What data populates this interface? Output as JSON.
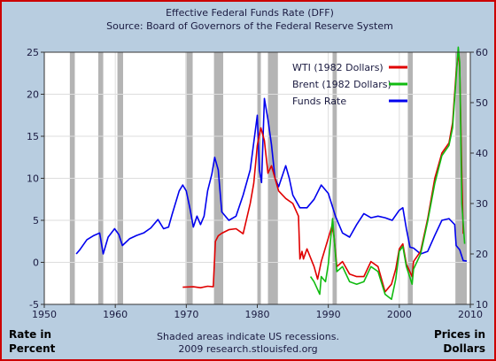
{
  "chart_data": {
    "type": "line",
    "title": "Effective Federal Funds Rate (DFF)",
    "subtitle": "Source: Board of Governors of the Federal Reserve System",
    "left_axis_label": [
      "Rate in",
      "Percent"
    ],
    "right_axis_label": [
      "Prices in",
      "Dollars"
    ],
    "note": "Shaded areas indicate US recessions.",
    "source_line": "2009 research.stlouisfed.org",
    "xlim": [
      1950,
      2010
    ],
    "ylim_left": [
      -5,
      25
    ],
    "ylim_right": [
      10,
      60
    ],
    "x_ticks": [
      1950,
      1960,
      1970,
      1980,
      1990,
      2000,
      2010
    ],
    "y_ticks_left": [
      -5,
      0,
      5,
      10,
      15,
      20,
      25
    ],
    "y_ticks_right": [
      10,
      20,
      30,
      40,
      50,
      60
    ],
    "grid": true,
    "legend_position": "top-right",
    "recessions": [
      [
        1953.6,
        1954.3
      ],
      [
        1957.6,
        1958.3
      ],
      [
        1960.3,
        1961.1
      ],
      [
        1969.9,
        1970.9
      ],
      [
        1973.9,
        1975.2
      ],
      [
        1980.0,
        1980.5
      ],
      [
        1981.5,
        1982.9
      ],
      [
        1990.6,
        1991.2
      ],
      [
        2001.2,
        2001.9
      ],
      [
        2007.9,
        2009.5
      ]
    ],
    "colors": {
      "WTI": "#e00000",
      "Brent": "#11bb11",
      "Funds": "#0000ee",
      "recession": "#b4b4b4"
    },
    "series": [
      {
        "name": "WTI  (1982 Dollars)",
        "axis": "right",
        "x": [
          1969.5,
          1971,
          1972,
          1973,
          1973.8,
          1974.1,
          1974.5,
          1975,
          1976,
          1977,
          1978,
          1979,
          1979.5,
          1980,
          1980.5,
          1981,
          1981.5,
          1982,
          1982.5,
          1983,
          1984,
          1985,
          1985.8,
          1986,
          1986.3,
          1986.5,
          1987,
          1988,
          1988.5,
          1989,
          1990.5,
          1990.8,
          1991.2,
          1992,
          1993,
          1994,
          1995,
          1996,
          1997,
          1998,
          1998.9,
          1999.5,
          2000,
          2000.5,
          2001,
          2001.8,
          2002,
          2003,
          2004,
          2005,
          2006,
          2007,
          2007.5,
          2008,
          2008.3,
          2008.5,
          2008.8,
          2009
        ],
        "values": [
          13.4,
          13.5,
          13.3,
          13.6,
          13.5,
          22.5,
          23.6,
          24.1,
          24.8,
          25.0,
          24.0,
          30.0,
          34.0,
          41.5,
          45.0,
          42.5,
          36.0,
          37.5,
          35.0,
          32.5,
          31.0,
          30.0,
          27.5,
          19.0,
          20.5,
          19.0,
          21.0,
          17.5,
          15.0,
          18.5,
          25.5,
          23.5,
          17.5,
          18.5,
          16.0,
          15.5,
          15.5,
          18.5,
          17.5,
          12.5,
          14.0,
          17.0,
          21.0,
          22.0,
          18.0,
          15.5,
          18.5,
          20.5,
          27.0,
          35.0,
          40.0,
          42.0,
          46.0,
          56.0,
          60.0,
          57.0,
          36.0,
          24.0
        ]
      },
      {
        "name": "Brent  (1982 Dollars)",
        "axis": "right",
        "x": [
          1987.5,
          1988,
          1988.8,
          1989,
          1989.6,
          1990,
          1990.6,
          1990.8,
          1991.2,
          1992,
          1993,
          1994,
          1995,
          1996,
          1997,
          1998,
          1998.9,
          1999.5,
          2000,
          2000.5,
          2001,
          2001.8,
          2002,
          2003,
          2004,
          2005,
          2006,
          2007,
          2007.5,
          2008,
          2008.3,
          2008.5,
          2008.8,
          2009.2
        ],
        "values": [
          15.5,
          14.5,
          12.0,
          15.5,
          14.5,
          18.0,
          27.0,
          23.5,
          16.5,
          17.5,
          14.5,
          14.0,
          14.5,
          17.5,
          16.5,
          12.0,
          11.0,
          15.0,
          20.5,
          21.5,
          17.5,
          14.0,
          17.0,
          20.0,
          26.5,
          34.0,
          39.5,
          41.5,
          45.0,
          55.0,
          61.0,
          58.0,
          30.0,
          22.0
        ]
      },
      {
        "name": "Funds Rate",
        "axis": "left",
        "x": [
          1954.5,
          1955,
          1956,
          1957,
          1957.8,
          1958.3,
          1959,
          1959.9,
          1960.5,
          1961,
          1962,
          1963,
          1964,
          1965,
          1966,
          1966.8,
          1967.5,
          1968,
          1969,
          1969.5,
          1970,
          1970.5,
          1971,
          1971.5,
          1972,
          1972.5,
          1973,
          1973.6,
          1974,
          1974.5,
          1975,
          1975.5,
          1976,
          1977,
          1978,
          1979,
          1980,
          1980.3,
          1980.6,
          1981,
          1981.5,
          1982,
          1982.5,
          1983,
          1984,
          1984.5,
          1985,
          1986,
          1987,
          1988,
          1989,
          1990,
          1991,
          1992,
          1993,
          1994,
          1995,
          1996,
          1997,
          1998,
          1999,
          2000,
          2000.5,
          2001,
          2001.5,
          2002,
          2003,
          2004,
          2005,
          2006,
          2007,
          2007.8,
          2008,
          2008.5,
          2009,
          2009.5
        ],
        "values": [
          1.0,
          1.5,
          2.7,
          3.2,
          3.5,
          1.0,
          3.0,
          4.0,
          3.3,
          2.0,
          2.8,
          3.2,
          3.5,
          4.1,
          5.1,
          4.0,
          4.2,
          5.7,
          8.5,
          9.2,
          8.5,
          6.5,
          4.2,
          5.5,
          4.5,
          5.5,
          8.5,
          10.5,
          12.5,
          11.0,
          6.0,
          5.5,
          5.0,
          5.5,
          8.0,
          11.0,
          17.5,
          11.0,
          9.5,
          19.5,
          17.0,
          14.0,
          10.0,
          9.0,
          11.5,
          10.0,
          8.0,
          6.5,
          6.5,
          7.5,
          9.2,
          8.2,
          5.5,
          3.5,
          3.0,
          4.5,
          5.8,
          5.3,
          5.5,
          5.3,
          5.0,
          6.2,
          6.5,
          4.0,
          1.8,
          1.7,
          1.0,
          1.3,
          3.2,
          5.0,
          5.2,
          4.5,
          2.0,
          1.5,
          0.2,
          0.15
        ]
      }
    ]
  }
}
